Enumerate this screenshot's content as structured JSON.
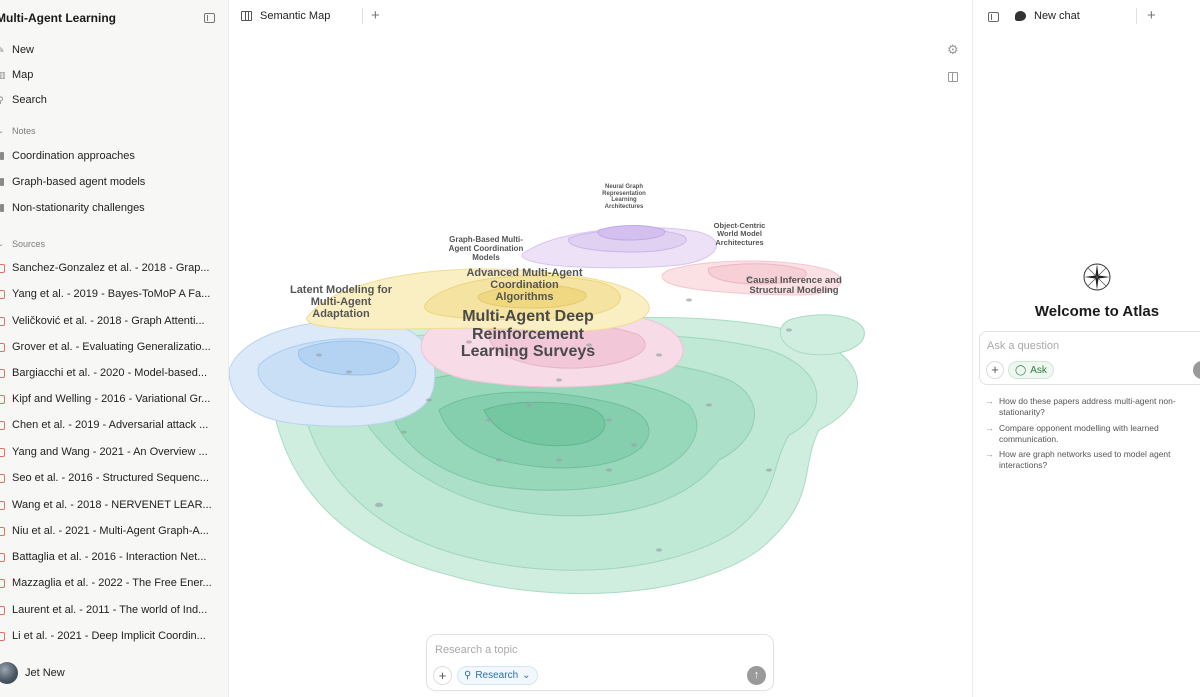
{
  "sidebar": {
    "title": "Multi-Agent Learning",
    "nav": [
      {
        "label": "New",
        "icon": "new-note-icon"
      },
      {
        "label": "Map",
        "icon": "map-icon"
      },
      {
        "label": "Search",
        "icon": "search-icon"
      }
    ],
    "notes_header": "Notes",
    "notes": [
      "Coordination approaches",
      "Graph-based agent models",
      "Non-stationarity challenges"
    ],
    "sources_header": "Sources",
    "sources": [
      "Sanchez-Gonzalez et al. - 2018 - Grap...",
      "Yang et al. - 2019 - Bayes-ToMoP A Fa...",
      "Veličković et al. - 2018 - Graph Attenti...",
      "Grover et al. - Evaluating Generalizatio...",
      "Bargiacchi et al. - 2020 - Model-based...",
      "Kipf and Welling - 2016 - Variational Gr...",
      "Chen et al. - 2019 - Adversarial attack ...",
      "Yang and Wang - 2021 - An Overview ...",
      "Seo et al. - 2016 - Structured Sequenc...",
      "Wang et al. - 2018 - NERVENET LEAR...",
      "Niu et al. - 2021 - Multi-Agent Graph-A...",
      "Battaglia et al. - 2016 - Interaction Net...",
      "Mazzaglia et al. - 2022 - The Free Ener...",
      "Laurent et al. - 2011 - The world of Ind...",
      "Li et al. - 2021 - Deep Implicit Coordin..."
    ],
    "user_name": "Jet New"
  },
  "main": {
    "tab_label": "Semantic Map",
    "map_labels": {
      "neural": "Neural Graph Representation Learning Architectures",
      "object": "Object-Centric World Model Architectures",
      "graph": "Graph-Based Multi-Agent Coordination Models",
      "advanced": "Advanced Multi-Agent Coordination Algorithms",
      "causal": "Causal Inference and Structural Modeling",
      "latent": "Latent Modeling for Multi-Agent Adaptation",
      "main": "Multi-Agent Deep Reinforcement Learning Surveys"
    },
    "composer": {
      "placeholder": "Research a topic",
      "mode_label": "Research"
    }
  },
  "chat": {
    "tab_label": "New chat",
    "welcome": "Welcome to Atlas",
    "placeholder": "Ask a question",
    "ask_label": "Ask",
    "suggestions": [
      "How do these papers address multi-agent non-stationarity?",
      "Compare opponent modelling with learned communication.",
      "How are graph networks used to model agent interactions?"
    ]
  },
  "colors": {
    "green": "#8fd3b4",
    "blue": "#a9cdf2",
    "yellow": "#f3de8a",
    "pink": "#f4c6d6",
    "purple": "#d8c6ef",
    "accent_research": "#2b6fae",
    "accent_ask": "#2d7a45"
  }
}
